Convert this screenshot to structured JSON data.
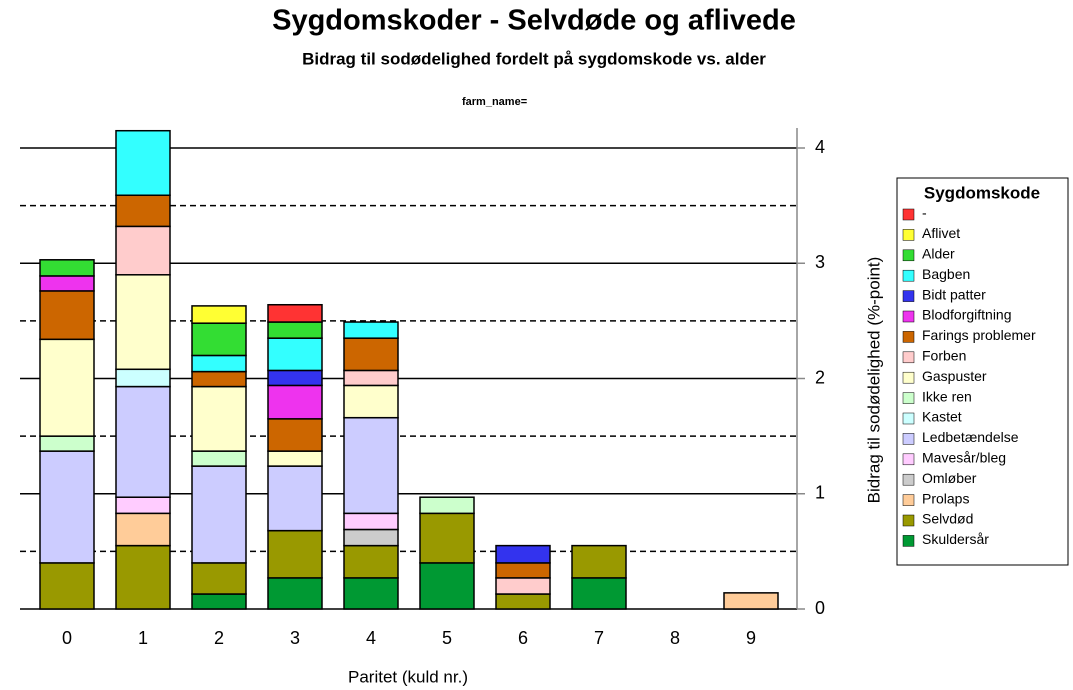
{
  "chart_data": {
    "type": "stacked_bar",
    "title": "Sygdomskoder - Selvdøde og aflivede",
    "subtitle": "Bidrag til sodødelighed fordelt på sygdomskode vs. alder",
    "caption": "farm_name=",
    "x_label": "Paritet (kuld nr.)",
    "y_label": "Bidrag til sodødelighed (%-point)",
    "legend_title": "Sygdomskode",
    "legend_position": "right",
    "categories": [
      "0",
      "1",
      "2",
      "3",
      "4",
      "5",
      "6",
      "7",
      "8",
      "9"
    ],
    "ylim": [
      0,
      4.2
    ],
    "yticks": [
      0,
      1,
      2,
      3,
      4
    ],
    "minor_yticks": [
      0.5,
      1.5,
      2.5,
      3.5
    ],
    "grid": true,
    "series": [
      {
        "name": "-",
        "color": "#ff3333",
        "values": [
          0,
          0,
          0,
          0.15,
          0,
          0,
          0,
          0,
          0,
          0
        ]
      },
      {
        "name": "Aflivet",
        "color": "#ffff33",
        "values": [
          0,
          0,
          0.15,
          0,
          0,
          0,
          0,
          0,
          0,
          0
        ]
      },
      {
        "name": "Alder",
        "color": "#33dd33",
        "values": [
          0.14,
          0,
          0.28,
          0.14,
          0,
          0,
          0,
          0,
          0,
          0
        ]
      },
      {
        "name": "Bagben",
        "color": "#33ffff",
        "values": [
          0,
          0.56,
          0.14,
          0.28,
          0.14,
          0,
          0,
          0,
          0,
          0
        ]
      },
      {
        "name": "Bidt patter",
        "color": "#3333ee",
        "values": [
          0,
          0,
          0,
          0.13,
          0,
          0,
          0.15,
          0,
          0,
          0
        ]
      },
      {
        "name": "Blodforgiftning",
        "color": "#ee33ee",
        "values": [
          0.13,
          0,
          0,
          0.29,
          0,
          0,
          0,
          0,
          0,
          0
        ]
      },
      {
        "name": "Farings problemer",
        "color": "#cc6600",
        "values": [
          0.42,
          0.27,
          0.13,
          0.28,
          0.28,
          0,
          0.13,
          0,
          0,
          0
        ]
      },
      {
        "name": "Forben",
        "color": "#ffcccc",
        "values": [
          0,
          0.42,
          0,
          0,
          0.13,
          0,
          0.14,
          0,
          0,
          0
        ]
      },
      {
        "name": "Gaspuster",
        "color": "#ffffcc",
        "values": [
          0.84,
          0.82,
          0.56,
          0.13,
          0.28,
          0,
          0,
          0,
          0,
          0
        ]
      },
      {
        "name": "Ikke ren",
        "color": "#ccffcc",
        "values": [
          0.13,
          0,
          0.13,
          0,
          0,
          0.14,
          0,
          0,
          0,
          0
        ]
      },
      {
        "name": "Kastet",
        "color": "#ccffff",
        "values": [
          0,
          0.15,
          0,
          0,
          0,
          0,
          0,
          0,
          0,
          0
        ]
      },
      {
        "name": "Ledbetændelse",
        "color": "#ccccff",
        "values": [
          0.97,
          0.96,
          0.84,
          0.56,
          0.83,
          0,
          0,
          0,
          0,
          0
        ]
      },
      {
        "name": "Mavesår/bleg",
        "color": "#ffccff",
        "values": [
          0,
          0.14,
          0,
          0,
          0.14,
          0,
          0,
          0,
          0,
          0
        ]
      },
      {
        "name": "Omløber",
        "color": "#cccccc",
        "values": [
          0,
          0,
          0,
          0,
          0.14,
          0,
          0,
          0,
          0,
          0
        ]
      },
      {
        "name": "Prolaps",
        "color": "#ffcc99",
        "values": [
          0,
          0.28,
          0,
          0,
          0,
          0,
          0,
          0,
          0,
          0.14
        ]
      },
      {
        "name": "Selvdød",
        "color": "#999900",
        "values": [
          0.4,
          0.55,
          0.27,
          0.41,
          0.28,
          0.43,
          0.13,
          0.28,
          0,
          0
        ]
      },
      {
        "name": "Skuldersår",
        "color": "#009933",
        "values": [
          0,
          0,
          0.13,
          0.27,
          0.27,
          0.4,
          0,
          0.27,
          0,
          0
        ]
      }
    ]
  }
}
